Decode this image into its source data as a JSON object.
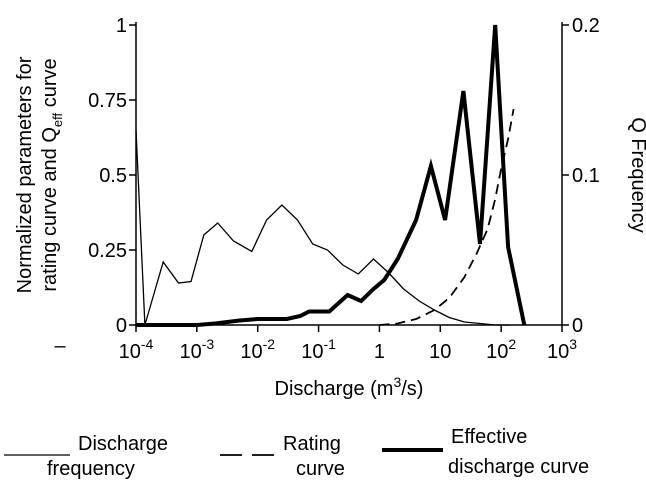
{
  "chart_data": {
    "type": "line",
    "title": "",
    "xlabel": "Discharge (m³/s)",
    "xscale": "log",
    "xlim": [
      0.0001,
      1000
    ],
    "x_ticks": [
      {
        "value": 0.0001,
        "base": "10",
        "exp": "-4"
      },
      {
        "value": 0.001,
        "base": "10",
        "exp": "-3"
      },
      {
        "value": 0.01,
        "base": "10",
        "exp": "-2"
      },
      {
        "value": 0.1,
        "base": "10",
        "exp": "-1"
      },
      {
        "value": 1,
        "base": "1",
        "exp": ""
      },
      {
        "value": 10,
        "base": "10",
        "exp": ""
      },
      {
        "value": 100,
        "base": "10",
        "exp": "2"
      },
      {
        "value": 1000,
        "base": "10",
        "exp": "3"
      }
    ],
    "ylabel_left": [
      "Normalized parameters for",
      "rating curve and Q",
      "eff",
      " curve"
    ],
    "ylim_left": [
      0,
      1
    ],
    "y_ticks_left": [
      "0",
      "0.25",
      "0.5",
      "0.75",
      "1"
    ],
    "ylabel_right": "Q Frequency",
    "ylim_right": [
      0,
      0.2
    ],
    "y_ticks_right": [
      "0",
      "0.1",
      "0.2"
    ],
    "stray_mark": "–",
    "series": [
      {
        "name": "Discharge frequency",
        "axis": "right",
        "style": "thin",
        "x": [
          0.0001,
          0.00014,
          0.00028,
          0.0005,
          0.0008,
          0.0013,
          0.0022,
          0.004,
          0.008,
          0.014,
          0.025,
          0.045,
          0.08,
          0.14,
          0.25,
          0.45,
          0.8,
          1.4,
          2.5,
          4.5,
          8,
          14,
          25,
          45,
          80,
          140
        ],
        "y": [
          0.13,
          0,
          0.042,
          0.028,
          0.029,
          0.06,
          0.068,
          0.056,
          0.049,
          0.07,
          0.08,
          0.07,
          0.054,
          0.05,
          0.04,
          0.034,
          0.044,
          0.035,
          0.024,
          0.016,
          0.01,
          0.005,
          0.002,
          0.001,
          0,
          0
        ]
      },
      {
        "name": "Rating curve",
        "axis": "left",
        "style": "dashed",
        "x": [
          1,
          2,
          4,
          8,
          14,
          25,
          40,
          60,
          80,
          100,
          130,
          160
        ],
        "y": [
          0,
          0.005,
          0.02,
          0.05,
          0.09,
          0.16,
          0.24,
          0.32,
          0.42,
          0.52,
          0.62,
          0.72
        ]
      },
      {
        "name": "Effective discharge curve",
        "axis": "left",
        "style": "thick",
        "x": [
          0.0001,
          0.001,
          0.002,
          0.005,
          0.01,
          0.02,
          0.03,
          0.05,
          0.07,
          0.1,
          0.15,
          0.3,
          0.5,
          0.8,
          1.2,
          2,
          4,
          7,
          12,
          24,
          45,
          80,
          120,
          130,
          240
        ],
        "y": [
          0,
          0,
          0.005,
          0.015,
          0.02,
          0.02,
          0.02,
          0.03,
          0.045,
          0.045,
          0.045,
          0.1,
          0.08,
          0.12,
          0.15,
          0.22,
          0.35,
          0.53,
          0.35,
          0.78,
          0.27,
          1.0,
          0.38,
          0.26,
          0
        ]
      }
    ],
    "legend": [
      {
        "lines": [
          "Discharge",
          "frequency"
        ],
        "style": "thin"
      },
      {
        "lines": [
          "Rating",
          "curve"
        ],
        "style": "dashed"
      },
      {
        "lines": [
          "Effective",
          "discharge curve"
        ],
        "style": "thick"
      }
    ],
    "legend_placement": "bottom",
    "grid": false
  }
}
